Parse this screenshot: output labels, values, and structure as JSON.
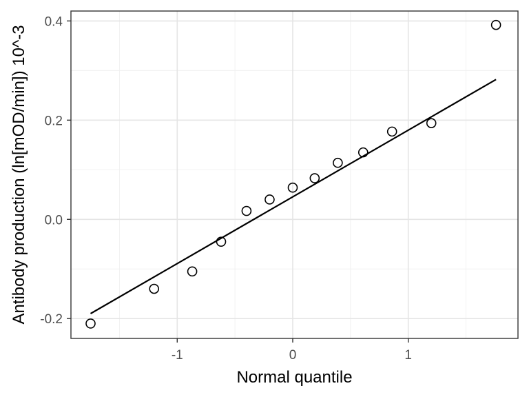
{
  "chart_data": {
    "type": "scatter",
    "title": "",
    "xlabel": "Normal quantile",
    "ylabel": "Antibody production (ln[mOD/min]) 10^-3",
    "xlim": [
      -1.92,
      1.95
    ],
    "ylim": [
      -0.24,
      0.42
    ],
    "x_ticks": [
      -1,
      0,
      1
    ],
    "x_tick_labels": [
      "-1",
      "0",
      "1"
    ],
    "y_ticks": [
      -0.2,
      0.0,
      0.2,
      0.4
    ],
    "y_tick_labels": [
      "-0.2",
      "0.0",
      "0.2",
      "0.4"
    ],
    "x_minor_ticks": [
      -1.5,
      -0.5,
      0.5,
      1.5
    ],
    "y_minor_ticks": [
      -0.1,
      0.1,
      0.3
    ],
    "grid": true,
    "series": [
      {
        "kind": "points",
        "marker": "open-circle",
        "x": [
          -1.75,
          -1.2,
          -0.87,
          -0.62,
          -0.4,
          -0.2,
          0.0,
          0.19,
          0.39,
          0.61,
          0.86,
          1.2,
          1.76
        ],
        "y": [
          -0.21,
          -0.14,
          -0.105,
          -0.045,
          0.017,
          0.04,
          0.064,
          0.083,
          0.114,
          0.135,
          0.177,
          0.194,
          0.392
        ]
      },
      {
        "kind": "line",
        "x": [
          -1.75,
          1.76
        ],
        "y": [
          -0.19,
          0.282
        ]
      }
    ]
  }
}
